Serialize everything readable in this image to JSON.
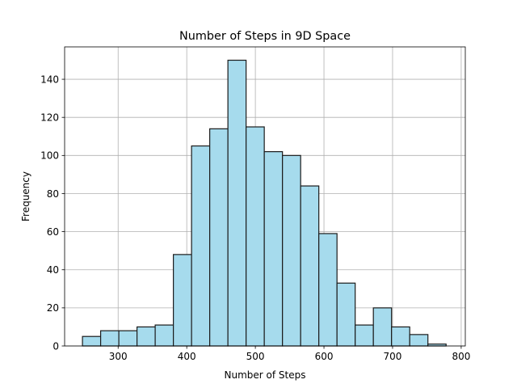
{
  "chart_data": {
    "type": "bar",
    "title": "Number of Steps in 9D Space",
    "xlabel": "Number of Steps",
    "ylabel": "Frequency",
    "xlim": [
      222,
      806
    ],
    "ylim": [
      0,
      157
    ],
    "xticks": [
      300,
      400,
      500,
      600,
      700,
      800
    ],
    "yticks": [
      0,
      20,
      40,
      60,
      80,
      100,
      120,
      140
    ],
    "grid": true,
    "bar_color": "#a6dbed",
    "edge_color": "#1b1b1b",
    "bins": [
      {
        "x0": 248.0,
        "x1": 274.5,
        "count": 5
      },
      {
        "x0": 274.5,
        "x1": 301.0,
        "count": 8
      },
      {
        "x0": 301.0,
        "x1": 327.5,
        "count": 8
      },
      {
        "x0": 327.5,
        "x1": 354.0,
        "count": 10
      },
      {
        "x0": 354.0,
        "x1": 380.5,
        "count": 11
      },
      {
        "x0": 380.5,
        "x1": 407.0,
        "count": 48
      },
      {
        "x0": 407.0,
        "x1": 433.5,
        "count": 105
      },
      {
        "x0": 433.5,
        "x1": 460.0,
        "count": 114
      },
      {
        "x0": 460.0,
        "x1": 486.5,
        "count": 150
      },
      {
        "x0": 486.5,
        "x1": 513.0,
        "count": 115
      },
      {
        "x0": 513.0,
        "x1": 539.5,
        "count": 102
      },
      {
        "x0": 539.5,
        "x1": 566.0,
        "count": 100
      },
      {
        "x0": 566.0,
        "x1": 592.5,
        "count": 84
      },
      {
        "x0": 592.5,
        "x1": 619.0,
        "count": 59
      },
      {
        "x0": 619.0,
        "x1": 645.5,
        "count": 33
      },
      {
        "x0": 645.5,
        "x1": 672.0,
        "count": 11
      },
      {
        "x0": 672.0,
        "x1": 698.5,
        "count": 20
      },
      {
        "x0": 698.5,
        "x1": 725.0,
        "count": 10
      },
      {
        "x0": 725.0,
        "x1": 751.5,
        "count": 6
      },
      {
        "x0": 751.5,
        "x1": 778.0,
        "count": 1
      }
    ]
  }
}
